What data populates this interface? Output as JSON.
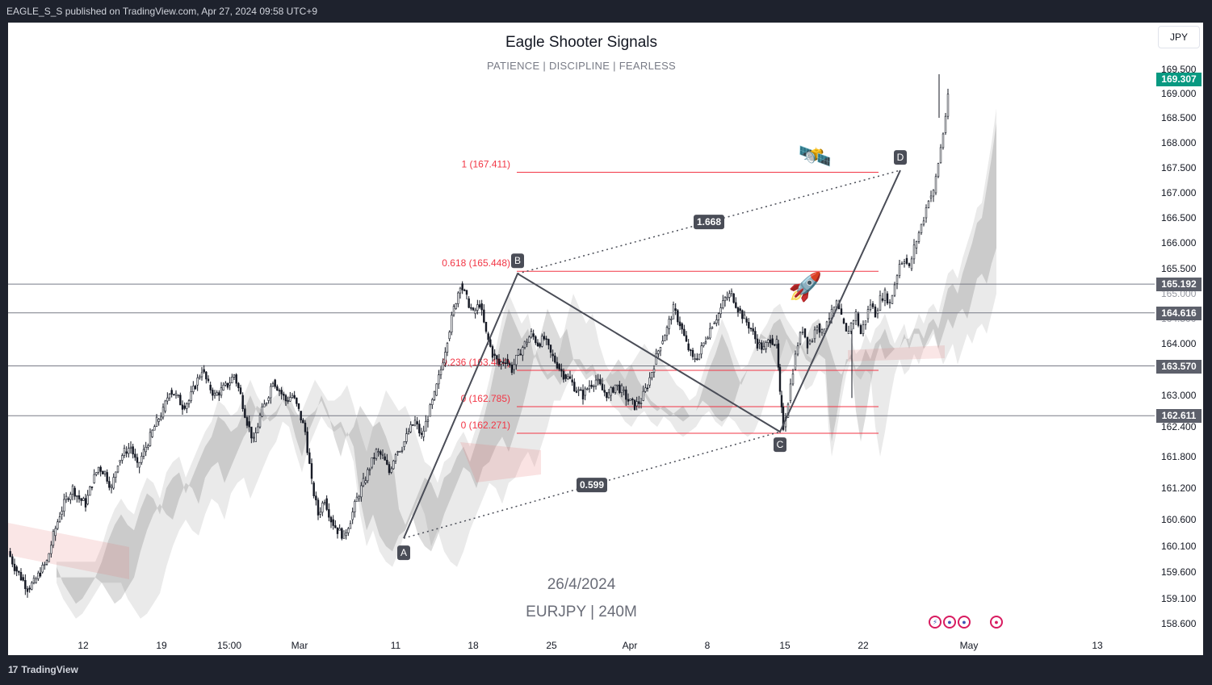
{
  "publisher_line": "EAGLE_S_S published on TradingView.com, Apr 27, 2024 09:58 UTC+9",
  "title": "Eagle Shooter Signals",
  "subtitle": "PATIENCE   |   DISCIPLINE   |   FEARLESS",
  "currency": "JPY",
  "watermark_date": "26/4/2024",
  "watermark_pair": "EURJPY  |  240M",
  "brand": "TradingView",
  "colors": {
    "up": "#131722",
    "down": "#131722",
    "fib": "#f23645",
    "level": "#787b86",
    "last": "#089981",
    "tag": "#5d606b"
  },
  "chart_data": {
    "type": "candlestick",
    "symbol": "EURJPY",
    "timeframe": "240M",
    "y_range": [
      158.2,
      170.0
    ],
    "x_labels": [
      "12",
      "19",
      "15:00",
      "Mar",
      "11",
      "18",
      "25",
      "Apr",
      "8",
      "15",
      "22",
      "May",
      "13"
    ],
    "y_ticks": [
      "169.500",
      "169.000",
      "168.500",
      "168.000",
      "167.500",
      "167.000",
      "166.500",
      "166.000",
      "165.500",
      "165.000",
      "164.500",
      "164.000",
      "163.000",
      "162.400",
      "161.800",
      "161.200",
      "160.600",
      "160.100",
      "159.600",
      "159.100",
      "158.600"
    ],
    "last_price": "169.307",
    "horizontal_levels": [
      "165.192",
      "164.616",
      "163.570",
      "162.611"
    ],
    "fib_levels": [
      {
        "label": "1 (167.411)",
        "value": 167.411
      },
      {
        "label": "0.618 (165.448)",
        "value": 165.448
      },
      {
        "label": "0.236 (163.484)",
        "value": 163.484
      },
      {
        "label": "0 (162.785)",
        "value": 162.785
      },
      {
        "label": "0 (162.271)",
        "value": 162.271
      }
    ],
    "pattern_points": [
      {
        "label": "A",
        "value": 160.25
      },
      {
        "label": "B",
        "value": 165.4
      },
      {
        "label": "C",
        "value": 162.3
      },
      {
        "label": "D",
        "value": 167.45
      }
    ],
    "ratios": [
      "1.668",
      "0.599"
    ],
    "close_path": [
      [
        0,
        160.0
      ],
      [
        8,
        159.7
      ],
      [
        16,
        159.5
      ],
      [
        24,
        159.3
      ],
      [
        32,
        159.4
      ],
      [
        40,
        159.6
      ],
      [
        48,
        159.8
      ],
      [
        56,
        160.3
      ],
      [
        64,
        160.7
      ],
      [
        72,
        161.0
      ],
      [
        80,
        161.2
      ],
      [
        88,
        161.0
      ],
      [
        96,
        160.9
      ],
      [
        104,
        161.3
      ],
      [
        112,
        161.6
      ],
      [
        120,
        161.5
      ],
      [
        128,
        161.2
      ],
      [
        136,
        161.7
      ],
      [
        144,
        161.9
      ],
      [
        152,
        162.0
      ],
      [
        160,
        161.6
      ],
      [
        168,
        161.9
      ],
      [
        176,
        162.2
      ],
      [
        184,
        162.5
      ],
      [
        192,
        162.7
      ],
      [
        200,
        163.1
      ],
      [
        208,
        163.0
      ],
      [
        216,
        162.8
      ],
      [
        224,
        162.9
      ],
      [
        232,
        163.2
      ],
      [
        240,
        163.5
      ],
      [
        248,
        163.2
      ],
      [
        256,
        163.0
      ],
      [
        264,
        163.1
      ],
      [
        272,
        163.2
      ],
      [
        280,
        163.4
      ],
      [
        288,
        163.0
      ],
      [
        296,
        162.5
      ],
      [
        304,
        162.1
      ],
      [
        312,
        162.6
      ],
      [
        320,
        162.9
      ],
      [
        328,
        163.3
      ],
      [
        336,
        163.1
      ],
      [
        344,
        162.9
      ],
      [
        352,
        163.0
      ],
      [
        360,
        162.7
      ],
      [
        368,
        162.3
      ],
      [
        376,
        161.3
      ],
      [
        384,
        160.7
      ],
      [
        392,
        161.0
      ],
      [
        400,
        160.6
      ],
      [
        408,
        160.4
      ],
      [
        416,
        160.3
      ],
      [
        424,
        160.6
      ],
      [
        432,
        161.0
      ],
      [
        440,
        161.3
      ],
      [
        448,
        161.6
      ],
      [
        456,
        161.9
      ],
      [
        464,
        161.8
      ],
      [
        472,
        161.5
      ],
      [
        480,
        161.9
      ],
      [
        488,
        162.0
      ],
      [
        496,
        162.3
      ],
      [
        504,
        162.5
      ],
      [
        512,
        162.2
      ],
      [
        520,
        162.6
      ],
      [
        528,
        163.0
      ],
      [
        536,
        163.5
      ],
      [
        544,
        164.1
      ],
      [
        552,
        164.7
      ],
      [
        560,
        165.2
      ],
      [
        568,
        164.9
      ],
      [
        576,
        164.6
      ],
      [
        584,
        164.8
      ],
      [
        592,
        164.2
      ],
      [
        600,
        163.8
      ],
      [
        608,
        163.6
      ],
      [
        616,
        163.7
      ],
      [
        624,
        163.5
      ],
      [
        632,
        163.8
      ],
      [
        640,
        164.0
      ],
      [
        648,
        164.2
      ],
      [
        656,
        164.0
      ],
      [
        664,
        164.1
      ],
      [
        672,
        163.8
      ],
      [
        680,
        163.6
      ],
      [
        688,
        163.4
      ],
      [
        696,
        163.3
      ],
      [
        704,
        163.1
      ],
      [
        712,
        163.0
      ],
      [
        720,
        163.2
      ],
      [
        728,
        163.3
      ],
      [
        736,
        163.1
      ],
      [
        744,
        163.0
      ],
      [
        752,
        163.2
      ],
      [
        760,
        163.1
      ],
      [
        768,
        162.9
      ],
      [
        776,
        162.8
      ],
      [
        784,
        162.9
      ],
      [
        792,
        163.2
      ],
      [
        800,
        163.6
      ],
      [
        808,
        164.0
      ],
      [
        816,
        164.3
      ],
      [
        824,
        164.7
      ],
      [
        832,
        164.4
      ],
      [
        840,
        164.0
      ],
      [
        848,
        163.7
      ],
      [
        856,
        163.8
      ],
      [
        864,
        164.1
      ],
      [
        872,
        164.4
      ],
      [
        880,
        164.6
      ],
      [
        888,
        164.9
      ],
      [
        896,
        165.0
      ],
      [
        904,
        164.7
      ],
      [
        912,
        164.5
      ],
      [
        920,
        164.3
      ],
      [
        928,
        164.0
      ],
      [
        936,
        163.9
      ],
      [
        944,
        164.1
      ],
      [
        952,
        164.0
      ],
      [
        956,
        163.0
      ],
      [
        960,
        162.4
      ],
      [
        966,
        162.9
      ],
      [
        972,
        163.5
      ],
      [
        978,
        164.0
      ],
      [
        984,
        164.3
      ],
      [
        990,
        164.0
      ],
      [
        996,
        164.1
      ],
      [
        1002,
        164.4
      ],
      [
        1008,
        164.2
      ],
      [
        1014,
        164.5
      ],
      [
        1020,
        164.6
      ],
      [
        1026,
        164.8
      ],
      [
        1032,
        164.5
      ],
      [
        1038,
        164.2
      ],
      [
        1044,
        164.4
      ],
      [
        1050,
        164.6
      ],
      [
        1056,
        164.2
      ],
      [
        1062,
        164.5
      ],
      [
        1068,
        164.8
      ],
      [
        1074,
        164.6
      ],
      [
        1080,
        164.9
      ],
      [
        1086,
        165.0
      ],
      [
        1092,
        164.8
      ],
      [
        1098,
        165.2
      ],
      [
        1104,
        165.6
      ],
      [
        1110,
        165.7
      ],
      [
        1116,
        165.5
      ],
      [
        1122,
        165.9
      ],
      [
        1128,
        166.2
      ],
      [
        1134,
        166.5
      ],
      [
        1140,
        166.9
      ],
      [
        1146,
        167.0
      ],
      [
        1152,
        167.6
      ],
      [
        1158,
        168.2
      ],
      [
        1164,
        168.9
      ]
    ]
  }
}
